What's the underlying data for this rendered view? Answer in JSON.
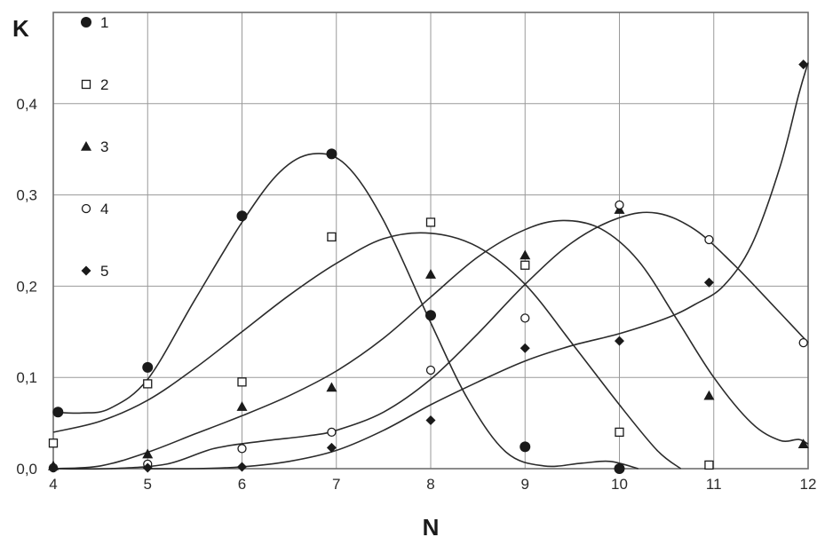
{
  "chart_data": {
    "type": "scatter",
    "title": "",
    "xlabel": "N",
    "ylabel": "K",
    "xlim": [
      4,
      12
    ],
    "ylim": [
      0,
      0.5
    ],
    "x_ticks": [
      "4",
      "5",
      "6",
      "7",
      "8",
      "9",
      "10",
      "11",
      "12"
    ],
    "y_ticks": [
      "0,0",
      "0,1",
      "0,2",
      "0,3",
      "0,4"
    ],
    "grid": true,
    "legend_position": "top-left",
    "series": [
      {
        "name": "1",
        "marker": "filled-circle",
        "points": [
          [
            4.05,
            0.062
          ],
          [
            5.0,
            0.111
          ],
          [
            6.0,
            0.277
          ],
          [
            6.95,
            0.345
          ],
          [
            8.0,
            0.168
          ],
          [
            9.0,
            0.024
          ],
          [
            10.0,
            0.0
          ]
        ],
        "curve": [
          [
            4.0,
            0.062
          ],
          [
            4.3,
            0.061
          ],
          [
            4.6,
            0.066
          ],
          [
            5.0,
            0.098
          ],
          [
            5.5,
            0.185
          ],
          [
            6.0,
            0.27
          ],
          [
            6.4,
            0.325
          ],
          [
            6.75,
            0.345
          ],
          [
            7.1,
            0.333
          ],
          [
            7.5,
            0.272
          ],
          [
            8.0,
            0.16
          ],
          [
            8.4,
            0.075
          ],
          [
            8.8,
            0.018
          ],
          [
            9.2,
            0.003
          ],
          [
            9.6,
            0.006
          ],
          [
            9.9,
            0.008
          ],
          [
            10.2,
            0.0
          ]
        ]
      },
      {
        "name": "2",
        "marker": "open-square",
        "points": [
          [
            4.0,
            0.028
          ],
          [
            5.0,
            0.093
          ],
          [
            6.0,
            0.095
          ],
          [
            6.95,
            0.254
          ],
          [
            8.0,
            0.27
          ],
          [
            9.0,
            0.223
          ],
          [
            10.0,
            0.04
          ],
          [
            10.95,
            0.004
          ]
        ],
        "curve": [
          [
            4.0,
            0.04
          ],
          [
            4.5,
            0.052
          ],
          [
            5.0,
            0.075
          ],
          [
            5.5,
            0.11
          ],
          [
            6.0,
            0.15
          ],
          [
            6.5,
            0.19
          ],
          [
            7.0,
            0.225
          ],
          [
            7.5,
            0.252
          ],
          [
            8.0,
            0.258
          ],
          [
            8.5,
            0.243
          ],
          [
            9.0,
            0.202
          ],
          [
            9.5,
            0.137
          ],
          [
            10.0,
            0.07
          ],
          [
            10.4,
            0.02
          ],
          [
            10.65,
            0.0
          ]
        ]
      },
      {
        "name": "3",
        "marker": "filled-triangle",
        "points": [
          [
            4.0,
            0.003
          ],
          [
            5.0,
            0.016
          ],
          [
            6.0,
            0.068
          ],
          [
            6.95,
            0.089
          ],
          [
            8.0,
            0.213
          ],
          [
            9.0,
            0.234
          ],
          [
            10.0,
            0.284
          ],
          [
            10.95,
            0.08
          ],
          [
            11.95,
            0.027
          ]
        ],
        "curve": [
          [
            4.0,
            0.0
          ],
          [
            4.5,
            0.003
          ],
          [
            5.0,
            0.018
          ],
          [
            5.5,
            0.038
          ],
          [
            6.0,
            0.058
          ],
          [
            6.5,
            0.08
          ],
          [
            7.0,
            0.107
          ],
          [
            7.5,
            0.143
          ],
          [
            8.0,
            0.188
          ],
          [
            8.5,
            0.232
          ],
          [
            9.0,
            0.262
          ],
          [
            9.4,
            0.272
          ],
          [
            9.8,
            0.263
          ],
          [
            10.2,
            0.228
          ],
          [
            10.6,
            0.165
          ],
          [
            11.0,
            0.1
          ],
          [
            11.4,
            0.05
          ],
          [
            11.7,
            0.031
          ],
          [
            11.9,
            0.032
          ],
          [
            12.0,
            0.027
          ]
        ]
      },
      {
        "name": "4",
        "marker": "open-circle",
        "points": [
          [
            4.0,
            0.001
          ],
          [
            5.0,
            0.005
          ],
          [
            6.0,
            0.022
          ],
          [
            6.95,
            0.04
          ],
          [
            8.0,
            0.108
          ],
          [
            9.0,
            0.165
          ],
          [
            10.0,
            0.289
          ],
          [
            10.95,
            0.251
          ],
          [
            11.95,
            0.138
          ]
        ],
        "curve": [
          [
            4.0,
            0.0
          ],
          [
            4.6,
            0.0
          ],
          [
            5.2,
            0.005
          ],
          [
            5.7,
            0.022
          ],
          [
            6.2,
            0.03
          ],
          [
            6.7,
            0.036
          ],
          [
            7.0,
            0.042
          ],
          [
            7.5,
            0.062
          ],
          [
            8.0,
            0.098
          ],
          [
            8.5,
            0.148
          ],
          [
            9.0,
            0.202
          ],
          [
            9.5,
            0.248
          ],
          [
            10.0,
            0.275
          ],
          [
            10.4,
            0.28
          ],
          [
            10.8,
            0.262
          ],
          [
            11.2,
            0.225
          ],
          [
            11.6,
            0.182
          ],
          [
            12.0,
            0.138
          ]
        ]
      },
      {
        "name": "5",
        "marker": "filled-diamond",
        "points": [
          [
            4.0,
            0.001
          ],
          [
            5.0,
            0.001
          ],
          [
            6.0,
            0.002
          ],
          [
            6.95,
            0.023
          ],
          [
            8.0,
            0.053
          ],
          [
            9.0,
            0.132
          ],
          [
            10.0,
            0.14
          ],
          [
            10.95,
            0.204
          ],
          [
            11.95,
            0.443
          ]
        ],
        "curve": [
          [
            5.0,
            0.0
          ],
          [
            5.5,
            0.0
          ],
          [
            6.0,
            0.002
          ],
          [
            6.5,
            0.008
          ],
          [
            7.0,
            0.02
          ],
          [
            7.5,
            0.042
          ],
          [
            8.0,
            0.07
          ],
          [
            8.5,
            0.095
          ],
          [
            9.0,
            0.118
          ],
          [
            9.5,
            0.135
          ],
          [
            10.0,
            0.148
          ],
          [
            10.5,
            0.165
          ],
          [
            10.8,
            0.18
          ],
          [
            11.1,
            0.2
          ],
          [
            11.4,
            0.245
          ],
          [
            11.7,
            0.33
          ],
          [
            11.9,
            0.41
          ],
          [
            12.0,
            0.445
          ]
        ]
      }
    ]
  },
  "legend": {
    "title": "K",
    "items": [
      {
        "label": "1",
        "marker": "filled-circle"
      },
      {
        "label": "2",
        "marker": "open-square"
      },
      {
        "label": "3",
        "marker": "filled-triangle"
      },
      {
        "label": "4",
        "marker": "open-circle"
      },
      {
        "label": "5",
        "marker": "filled-diamond"
      }
    ]
  }
}
